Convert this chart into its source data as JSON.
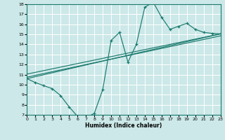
{
  "xlabel": "Humidex (Indice chaleur)",
  "bg_color": "#cce8e8",
  "line_color": "#1a7a6e",
  "grid_color": "#ffffff",
  "xmin": 0,
  "xmax": 23,
  "ymin": 7,
  "ymax": 18,
  "x_ticks": [
    0,
    1,
    2,
    3,
    4,
    5,
    6,
    7,
    8,
    9,
    10,
    11,
    12,
    13,
    14,
    15,
    16,
    17,
    18,
    19,
    20,
    21,
    22,
    23
  ],
  "y_ticks": [
    7,
    8,
    9,
    10,
    11,
    12,
    13,
    14,
    15,
    16,
    17,
    18
  ],
  "line1_x": [
    0,
    1,
    2,
    3,
    4,
    5,
    6,
    7,
    8,
    9,
    10,
    11,
    12,
    13,
    14,
    15,
    16,
    17,
    18,
    19,
    20,
    21,
    22,
    23
  ],
  "line1_y": [
    10.6,
    10.2,
    9.9,
    9.6,
    8.9,
    7.8,
    6.85,
    6.7,
    7.15,
    9.5,
    14.4,
    15.2,
    12.25,
    14.0,
    17.7,
    18.2,
    16.7,
    15.5,
    15.8,
    16.1,
    15.5,
    15.2,
    15.1,
    15.05
  ],
  "line2_x": [
    0,
    23
  ],
  "line2_y": [
    10.6,
    15.05
  ],
  "line3_x": [
    0,
    23
  ],
  "line3_y": [
    11.05,
    15.05
  ],
  "line4_x": [
    0,
    23
  ],
  "line4_y": [
    10.75,
    14.85
  ]
}
